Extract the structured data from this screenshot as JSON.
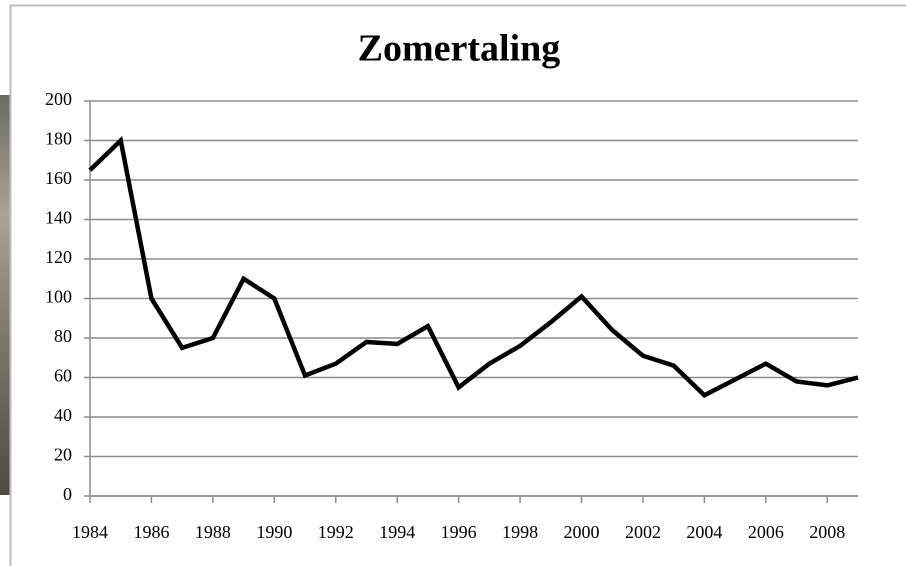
{
  "chart_data": {
    "type": "line",
    "title": "Zomertaling",
    "x": [
      1984,
      1985,
      1986,
      1987,
      1988,
      1989,
      1990,
      1991,
      1992,
      1993,
      1994,
      1995,
      1996,
      1997,
      1998,
      1999,
      2000,
      2001,
      2002,
      2003,
      2004,
      2005,
      2006,
      2007,
      2008,
      2009
    ],
    "series": [
      {
        "name": "Zomertaling",
        "color": "#000000",
        "values": [
          165,
          180,
          100,
          75,
          80,
          110,
          100,
          61,
          67,
          78,
          77,
          86,
          55,
          67,
          76,
          88,
          101,
          84,
          71,
          66,
          51,
          59,
          67,
          58,
          56,
          60
        ]
      }
    ],
    "xlim": [
      1984,
      2009
    ],
    "xticks": [
      1984,
      1986,
      1988,
      1990,
      1992,
      1994,
      1996,
      1998,
      2000,
      2002,
      2004,
      2006,
      2008
    ],
    "ylim": [
      0,
      200
    ],
    "yticks": [
      0,
      20,
      40,
      60,
      80,
      100,
      120,
      140,
      160,
      180,
      200
    ],
    "grid": true
  }
}
